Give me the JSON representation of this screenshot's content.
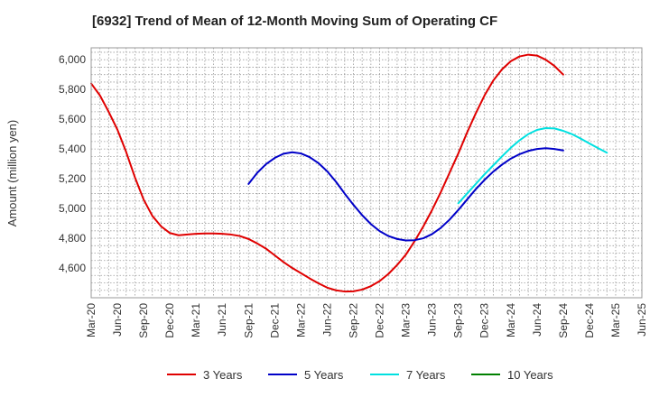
{
  "chart_data": {
    "type": "line",
    "title": "[6932]  Trend of Mean of 12-Month Moving Sum of Operating CF",
    "xlabel": "",
    "ylabel": "Amount (million yen)",
    "ylim": [
      4400,
      6080
    ],
    "yticks": [
      4600,
      4800,
      5000,
      5200,
      5400,
      5600,
      5800,
      6000
    ],
    "ytick_labels": [
      "4,600",
      "4,800",
      "5,000",
      "5,200",
      "5,400",
      "5,600",
      "5,800",
      "6,000"
    ],
    "x_labels": [
      "Mar-20",
      "Jun-20",
      "Sep-20",
      "Dec-20",
      "Mar-21",
      "Jun-21",
      "Sep-21",
      "Dec-21",
      "Mar-22",
      "Jun-22",
      "Sep-22",
      "Dec-22",
      "Mar-23",
      "Jun-23",
      "Sep-23",
      "Dec-23",
      "Mar-24",
      "Jun-24",
      "Sep-24",
      "Dec-24",
      "Mar-25",
      "Jun-25"
    ],
    "grid": true,
    "legend_position": "bottom",
    "series": [
      {
        "name": "3 Years",
        "color": "#e00000",
        "start_index": 0,
        "values": [
          5840,
          5760,
          5650,
          5530,
          5380,
          5210,
          5060,
          4950,
          4880,
          4835,
          4820,
          4825,
          4830,
          4832,
          4832,
          4830,
          4825,
          4815,
          4795,
          4765,
          4730,
          4685,
          4640,
          4600,
          4565,
          4530,
          4497,
          4468,
          4450,
          4442,
          4443,
          4455,
          4478,
          4512,
          4560,
          4620,
          4690,
          4780,
          4880,
          4990,
          5110,
          5240,
          5370,
          5510,
          5640,
          5760,
          5860,
          5935,
          5990,
          6022,
          6034,
          6028,
          6000,
          5958,
          5900
        ]
      },
      {
        "name": "5 Years",
        "color": "#0000c8",
        "start_index": 18,
        "values": [
          5165,
          5240,
          5298,
          5340,
          5368,
          5378,
          5370,
          5345,
          5305,
          5250,
          5180,
          5100,
          5025,
          4955,
          4895,
          4848,
          4815,
          4795,
          4785,
          4787,
          4800,
          4828,
          4870,
          4925,
          4990,
          5060,
          5130,
          5192,
          5248,
          5295,
          5335,
          5365,
          5387,
          5400,
          5405,
          5400,
          5390
        ]
      },
      {
        "name": "7 Years",
        "color": "#00e0e0",
        "start_index": 42,
        "values": [
          5035,
          5100,
          5165,
          5230,
          5290,
          5350,
          5408,
          5458,
          5500,
          5528,
          5540,
          5538,
          5522,
          5500,
          5470,
          5437,
          5405,
          5375
        ]
      },
      {
        "name": "10 Years",
        "color": "#008000",
        "start_index": 0,
        "values": []
      }
    ]
  }
}
